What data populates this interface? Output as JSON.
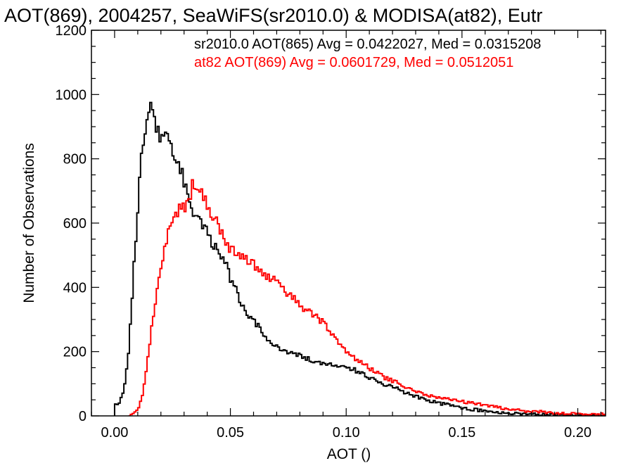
{
  "chart_data": {
    "type": "histogram-step",
    "title": "AOT(869), 2004257, SeaWiFS(sr2010.0) & MODISA(at82), Eutr",
    "xlabel": "AOT ()",
    "ylabel": "Number of Observations",
    "xlim": [
      -0.01,
      0.212
    ],
    "ylim": [
      0,
      1200
    ],
    "xticks": [
      0.0,
      0.05,
      0.1,
      0.15,
      0.2
    ],
    "xtick_labels": [
      "0.00",
      "0.05",
      "0.10",
      "0.15",
      "0.20"
    ],
    "yticks": [
      0,
      200,
      400,
      600,
      800,
      1000,
      1200
    ],
    "ytick_labels": [
      "0",
      "200",
      "400",
      "600",
      "800",
      "1000",
      "1200"
    ],
    "grid": false,
    "annotations": [
      {
        "text": "sr2010.0 AOT(865) Avg = 0.0422027, Med = 0.0315208",
        "color": "#000000"
      },
      {
        "text": "at82 AOT(869) Avg = 0.0601729, Med = 0.0512051",
        "color": "#ff0000"
      }
    ],
    "series": [
      {
        "color": "#000000",
        "points": [
          [
            0.0,
            0
          ],
          [
            0.0,
            40
          ],
          [
            0.002,
            40
          ],
          [
            0.004,
            80
          ],
          [
            0.006,
            200
          ],
          [
            0.008,
            420
          ],
          [
            0.01,
            650
          ],
          [
            0.012,
            850
          ],
          [
            0.014,
            920
          ],
          [
            0.015,
            960
          ],
          [
            0.016,
            950
          ],
          [
            0.018,
            900
          ],
          [
            0.02,
            870
          ],
          [
            0.022,
            890
          ],
          [
            0.024,
            850
          ],
          [
            0.026,
            820
          ],
          [
            0.028,
            780
          ],
          [
            0.03,
            730
          ],
          [
            0.032,
            680
          ],
          [
            0.034,
            640
          ],
          [
            0.036,
            620
          ],
          [
            0.038,
            600
          ],
          [
            0.04,
            580
          ],
          [
            0.042,
            540
          ],
          [
            0.044,
            520
          ],
          [
            0.046,
            500
          ],
          [
            0.048,
            470
          ],
          [
            0.05,
            430
          ],
          [
            0.052,
            400
          ],
          [
            0.054,
            360
          ],
          [
            0.056,
            330
          ],
          [
            0.058,
            310
          ],
          [
            0.06,
            300
          ],
          [
            0.062,
            280
          ],
          [
            0.064,
            250
          ],
          [
            0.066,
            240
          ],
          [
            0.068,
            230
          ],
          [
            0.07,
            220
          ],
          [
            0.072,
            210
          ],
          [
            0.075,
            200
          ],
          [
            0.08,
            185
          ],
          [
            0.085,
            175
          ],
          [
            0.09,
            165
          ],
          [
            0.095,
            160
          ],
          [
            0.1,
            150
          ],
          [
            0.105,
            140
          ],
          [
            0.11,
            120
          ],
          [
            0.115,
            100
          ],
          [
            0.12,
            90
          ],
          [
            0.125,
            75
          ],
          [
            0.13,
            60
          ],
          [
            0.135,
            48
          ],
          [
            0.14,
            40
          ],
          [
            0.145,
            33
          ],
          [
            0.15,
            25
          ],
          [
            0.155,
            20
          ],
          [
            0.16,
            15
          ],
          [
            0.165,
            12
          ],
          [
            0.17,
            9
          ],
          [
            0.175,
            6
          ],
          [
            0.18,
            5
          ],
          [
            0.19,
            3
          ],
          [
            0.2,
            2
          ],
          [
            0.21,
            1
          ]
        ]
      },
      {
        "color": "#ff0000",
        "points": [
          [
            0.006,
            0
          ],
          [
            0.008,
            10
          ],
          [
            0.01,
            20
          ],
          [
            0.012,
            60
          ],
          [
            0.014,
            160
          ],
          [
            0.016,
            280
          ],
          [
            0.018,
            380
          ],
          [
            0.02,
            460
          ],
          [
            0.022,
            540
          ],
          [
            0.024,
            590
          ],
          [
            0.026,
            620
          ],
          [
            0.028,
            640
          ],
          [
            0.03,
            650
          ],
          [
            0.032,
            670
          ],
          [
            0.034,
            730
          ],
          [
            0.036,
            720
          ],
          [
            0.038,
            690
          ],
          [
            0.04,
            660
          ],
          [
            0.042,
            630
          ],
          [
            0.044,
            600
          ],
          [
            0.046,
            570
          ],
          [
            0.048,
            540
          ],
          [
            0.05,
            520
          ],
          [
            0.055,
            500
          ],
          [
            0.06,
            470
          ],
          [
            0.065,
            440
          ],
          [
            0.07,
            420
          ],
          [
            0.072,
            410
          ],
          [
            0.074,
            380
          ],
          [
            0.078,
            360
          ],
          [
            0.08,
            340
          ],
          [
            0.085,
            320
          ],
          [
            0.09,
            290
          ],
          [
            0.095,
            250
          ],
          [
            0.1,
            200
          ],
          [
            0.105,
            170
          ],
          [
            0.11,
            150
          ],
          [
            0.115,
            125
          ],
          [
            0.12,
            110
          ],
          [
            0.125,
            90
          ],
          [
            0.13,
            75
          ],
          [
            0.135,
            65
          ],
          [
            0.14,
            55
          ],
          [
            0.145,
            50
          ],
          [
            0.15,
            45
          ],
          [
            0.155,
            40
          ],
          [
            0.16,
            33
          ],
          [
            0.165,
            27
          ],
          [
            0.17,
            22
          ],
          [
            0.175,
            17
          ],
          [
            0.18,
            14
          ],
          [
            0.19,
            10
          ],
          [
            0.2,
            6
          ],
          [
            0.21,
            5
          ]
        ]
      }
    ]
  }
}
